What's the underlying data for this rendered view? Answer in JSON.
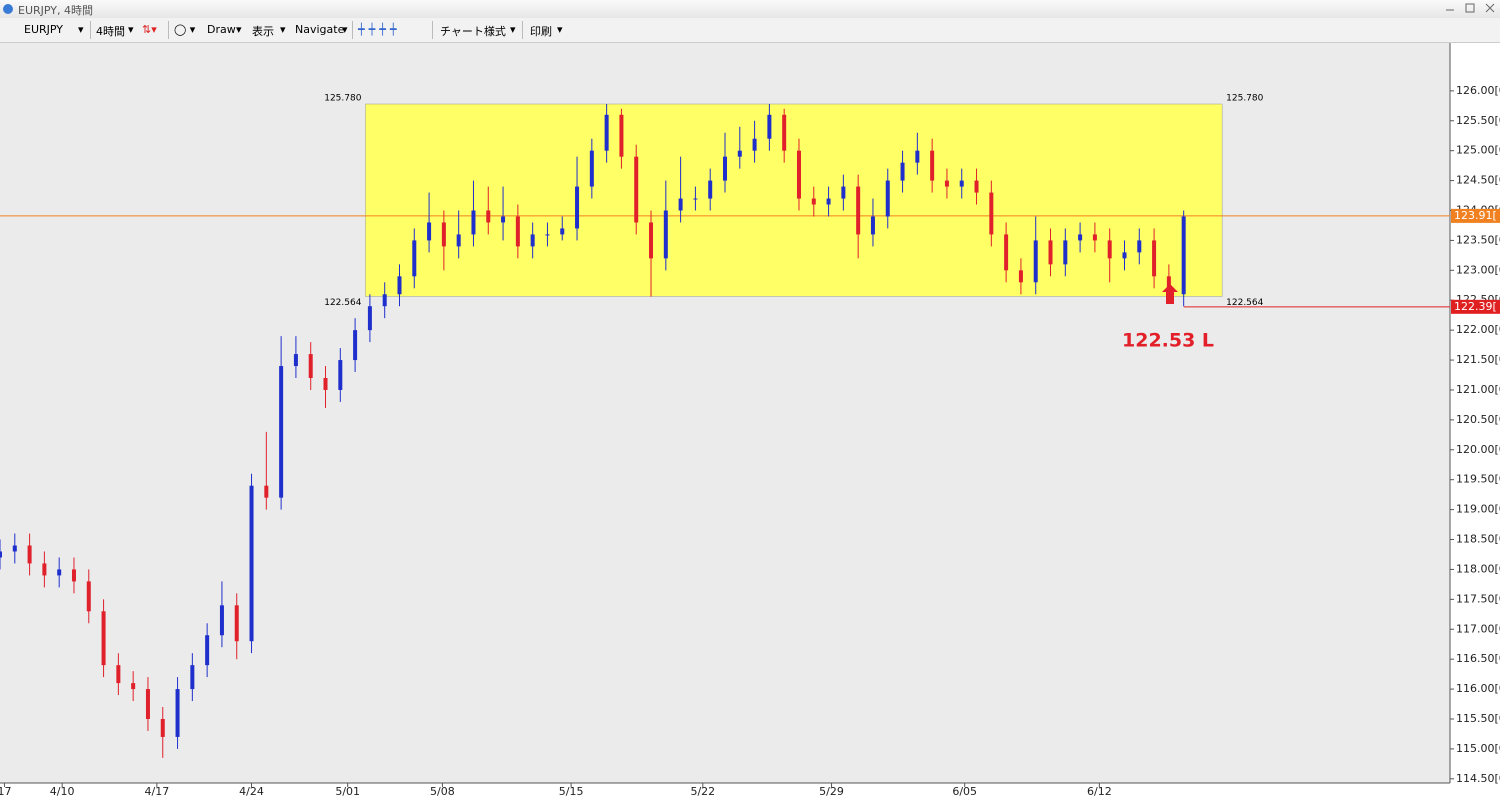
{
  "window": {
    "title": "EURJPY, 4時間"
  },
  "toolbar": {
    "symbol": "EURJPY",
    "timeframe": "4時間",
    "draw": "Draw",
    "view": "表示",
    "navigate": "Navigate",
    "chart_style": "チャート様式",
    "print": "印刷"
  },
  "chart_data": {
    "type": "candlestick",
    "up_color": "#1f2fcc",
    "down_color": "#e0202a",
    "open": [
      118.2,
      118.3,
      118.4,
      118.1,
      117.9,
      118.0,
      117.8,
      117.3,
      116.4,
      116.1,
      116.0,
      115.5,
      115.2,
      116.0,
      116.4,
      116.9,
      117.4,
      116.8,
      119.4,
      119.2,
      121.4,
      121.6,
      121.2,
      121.0,
      121.5,
      122.0,
      122.4,
      122.6,
      122.9,
      123.5,
      123.8,
      123.4,
      123.6,
      124.0,
      123.8,
      123.9,
      123.4,
      123.6,
      123.6,
      123.7,
      124.4,
      125.0,
      125.6,
      124.9,
      123.8,
      123.2,
      124.0,
      124.2,
      124.2,
      124.5,
      124.9,
      125.0,
      125.2,
      125.6,
      125.0,
      124.2,
      124.1,
      124.2,
      124.4,
      123.6,
      123.9,
      124.5,
      124.8,
      125.0,
      124.5,
      124.4,
      124.5,
      124.3,
      123.6,
      123.0,
      122.8,
      123.5,
      123.1,
      123.5,
      123.6,
      123.5,
      123.2,
      123.3,
      123.5,
      122.9,
      122.6
    ],
    "high": [
      118.5,
      118.6,
      118.6,
      118.3,
      118.2,
      118.2,
      118.0,
      117.5,
      116.6,
      116.3,
      116.2,
      115.7,
      116.2,
      116.6,
      117.1,
      117.8,
      117.6,
      119.6,
      120.3,
      121.9,
      121.9,
      121.8,
      121.4,
      121.7,
      122.2,
      122.6,
      122.8,
      123.1,
      123.7,
      124.3,
      124.0,
      124.0,
      124.5,
      124.4,
      124.4,
      124.1,
      123.8,
      123.8,
      123.9,
      124.9,
      125.2,
      125.78,
      125.7,
      125.1,
      124.0,
      124.5,
      124.9,
      124.4,
      124.7,
      125.3,
      125.4,
      125.5,
      125.78,
      125.7,
      125.2,
      124.4,
      124.4,
      124.6,
      124.6,
      124.2,
      124.7,
      125.0,
      125.3,
      125.2,
      124.7,
      124.7,
      124.7,
      124.5,
      123.8,
      123.2,
      123.9,
      123.7,
      123.7,
      123.8,
      123.8,
      123.7,
      123.5,
      123.7,
      123.7,
      123.1,
      124.0
    ],
    "low": [
      118.0,
      118.1,
      117.9,
      117.7,
      117.7,
      117.6,
      117.1,
      116.2,
      115.9,
      115.8,
      115.3,
      114.85,
      115.0,
      115.8,
      116.2,
      116.7,
      116.5,
      116.6,
      119.0,
      119.0,
      121.2,
      121.0,
      120.7,
      120.8,
      121.3,
      121.8,
      122.2,
      122.4,
      122.7,
      123.3,
      123.0,
      123.2,
      123.4,
      123.6,
      123.5,
      123.2,
      123.2,
      123.4,
      123.5,
      123.5,
      124.2,
      124.8,
      124.7,
      123.6,
      122.56,
      123.0,
      123.8,
      124.0,
      124.0,
      124.3,
      124.7,
      124.8,
      125.0,
      124.8,
      124.0,
      123.9,
      123.9,
      124.0,
      123.2,
      123.4,
      123.7,
      124.3,
      124.6,
      124.3,
      124.2,
      124.2,
      124.1,
      123.4,
      122.8,
      122.6,
      122.6,
      122.9,
      122.9,
      123.3,
      123.3,
      122.8,
      123.0,
      123.1,
      122.7,
      122.53,
      122.4
    ],
    "close": [
      118.3,
      118.4,
      118.1,
      117.9,
      118.0,
      117.8,
      117.3,
      116.4,
      116.1,
      116.0,
      115.5,
      115.2,
      116.0,
      116.4,
      116.9,
      117.4,
      116.8,
      119.4,
      119.2,
      121.4,
      121.6,
      121.2,
      121.0,
      121.5,
      122.0,
      122.4,
      122.6,
      122.9,
      123.5,
      123.8,
      123.4,
      123.6,
      124.0,
      123.8,
      123.9,
      123.4,
      123.6,
      123.6,
      123.7,
      124.4,
      125.0,
      125.6,
      124.9,
      123.8,
      123.2,
      124.0,
      124.2,
      124.2,
      124.5,
      124.9,
      125.0,
      125.2,
      125.6,
      125.0,
      124.2,
      124.1,
      124.2,
      124.4,
      123.6,
      123.9,
      124.5,
      124.8,
      125.0,
      124.5,
      124.4,
      124.5,
      124.3,
      123.6,
      123.0,
      122.8,
      123.5,
      123.1,
      123.5,
      123.6,
      123.5,
      123.2,
      123.3,
      123.5,
      122.9,
      122.6,
      123.9
    ],
    "xlim": [
      0,
      98
    ],
    "xticks": [
      {
        "value": 0.3,
        "label": "17"
      },
      {
        "value": 4.2,
        "label": "4/10"
      },
      {
        "value": 10.6,
        "label": "4/17"
      },
      {
        "value": 17,
        "label": "4/24"
      },
      {
        "value": 23.5,
        "label": "5/01"
      },
      {
        "value": 29.9,
        "label": "5/08"
      },
      {
        "value": 38.6,
        "label": "5/15"
      },
      {
        "value": 47.5,
        "label": "5/22"
      },
      {
        "value": 56.2,
        "label": "5/29"
      },
      {
        "value": 65.2,
        "label": "6/05"
      },
      {
        "value": 74.3,
        "label": "6/12"
      }
    ],
    "ylim": [
      114.43,
      126.8
    ],
    "yticks": [
      {
        "value": 114.5,
        "label": "114.50[0"
      },
      {
        "value": 115,
        "label": "115.00[0"
      },
      {
        "value": 115.5,
        "label": "115.50[0"
      },
      {
        "value": 116,
        "label": "116.00[0"
      },
      {
        "value": 116.5,
        "label": "116.50[0"
      },
      {
        "value": 117,
        "label": "117.00[0"
      },
      {
        "value": 117.5,
        "label": "117.50[0"
      },
      {
        "value": 118,
        "label": "118.00[0"
      },
      {
        "value": 118.5,
        "label": "118.50[0"
      },
      {
        "value": 119,
        "label": "119.00[0"
      },
      {
        "value": 119.5,
        "label": "119.50[0"
      },
      {
        "value": 120,
        "label": "120.00[0"
      },
      {
        "value": 120.5,
        "label": "120.50[0"
      },
      {
        "value": 121,
        "label": "121.00[0"
      },
      {
        "value": 121.5,
        "label": "121.50[0"
      },
      {
        "value": 122,
        "label": "122.00[0"
      },
      {
        "value": 122.5,
        "label": "122.50[0"
      },
      {
        "value": 123,
        "label": "123.00[0"
      },
      {
        "value": 123.5,
        "label": "123.50[0"
      },
      {
        "value": 124,
        "label": "124.00[0"
      },
      {
        "value": 124.5,
        "label": "124.50[0"
      },
      {
        "value": 125,
        "label": "125.00[0"
      },
      {
        "value": 125.5,
        "label": "125.50[0"
      },
      {
        "value": 126,
        "label": "126.00[0"
      }
    ],
    "box": {
      "high": {
        "value": 125.78,
        "label": "125.780"
      },
      "low": {
        "value": 122.564,
        "label": "122.564"
      },
      "x_start": 24.7,
      "x_end": 82.6,
      "color": "#ffff66"
    },
    "price_lines": [
      {
        "value": 123.91,
        "label": "123.91[",
        "color": "#f08020"
      },
      {
        "value": 122.39,
        "label": "122.39[",
        "color": "#e02020"
      }
    ],
    "annotation": "122.53 L"
  }
}
